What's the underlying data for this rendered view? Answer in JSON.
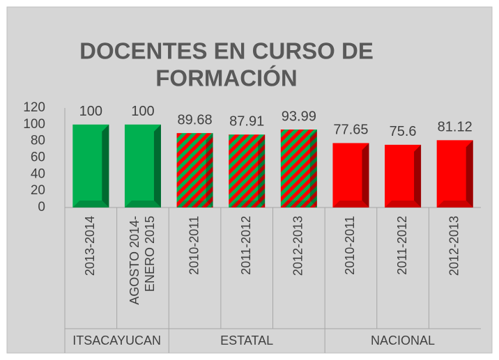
{
  "chart_data": {
    "type": "bar",
    "title_lines": [
      "DOCENTES EN CURSO DE",
      "FORMACIÓN"
    ],
    "ylim": [
      0,
      120
    ],
    "yticks": [
      0,
      20,
      40,
      60,
      80,
      100,
      120
    ],
    "grid": false,
    "groups": [
      {
        "name": "ITSACAYUCAN",
        "color": "#00b050",
        "categories": [
          "2013-2014",
          "AGOSTO 2014-ENERO 2015"
        ],
        "values": [
          100,
          100
        ]
      },
      {
        "name": "ESTATAL",
        "color": "#ff0000",
        "hatch_color": "#00b050",
        "categories": [
          "2010-2011",
          "2011-2012",
          "2012-2013"
        ],
        "values": [
          89.68,
          87.91,
          93.99
        ]
      },
      {
        "name": "NACIONAL",
        "color": "#ff0000",
        "categories": [
          "2010-2011",
          "2011-2012",
          "2012-2013"
        ],
        "values": [
          77.65,
          75.6,
          81.12
        ]
      }
    ]
  }
}
